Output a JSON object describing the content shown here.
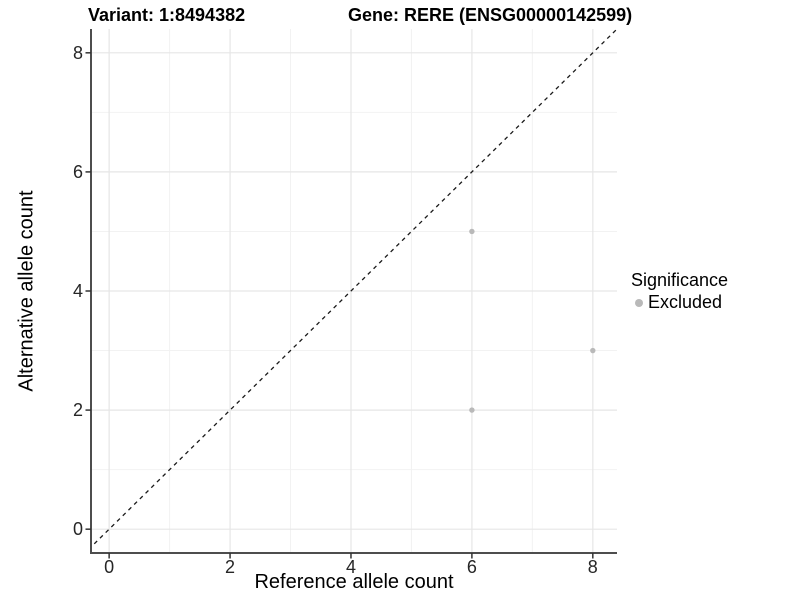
{
  "chart_data": {
    "type": "scatter",
    "title_left": "Variant: 1:8494382",
    "title_right": "Gene: RERE (ENSG00000142599)",
    "xlabel": "Reference allele count",
    "ylabel": "Alternative allele count",
    "xlim": [
      -0.3,
      8.4
    ],
    "ylim": [
      -0.4,
      8.4
    ],
    "x_ticks": [
      0,
      2,
      4,
      6,
      8
    ],
    "y_ticks": [
      0,
      2,
      4,
      6,
      8
    ],
    "x_minor_ticks": [
      1,
      3,
      5,
      7
    ],
    "y_minor_ticks": [
      1,
      3,
      5,
      7
    ],
    "grid": true,
    "legend_position": "right",
    "legend_title": "Significance",
    "series": [
      {
        "name": "Excluded",
        "color": "#b9b9b9",
        "points": [
          {
            "x": 6,
            "y": 5
          },
          {
            "x": 8,
            "y": 3
          },
          {
            "x": 6,
            "y": 2
          }
        ]
      }
    ],
    "reference_line": {
      "kind": "identity",
      "equation": "y = x",
      "style": "dashed",
      "color": "#1a1a1a"
    }
  },
  "colors": {
    "background": "#ffffff",
    "grid_major": "#e6e6e6",
    "grid_minor": "#f2f2f2",
    "axis_line": "#4d4d4d",
    "tick_mark": "#333333",
    "tick_label": "#262626",
    "point": "#b9b9b9"
  }
}
